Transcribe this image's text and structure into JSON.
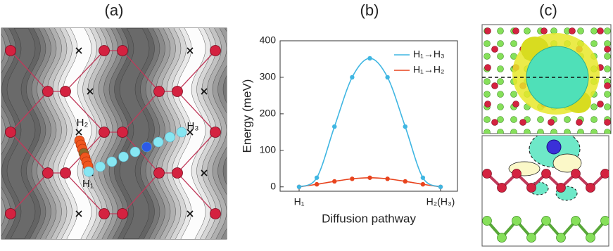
{
  "panel_labels": [
    "(a)",
    "(b)",
    "(c)"
  ],
  "panel_a": {
    "site_labels": [
      "H₂",
      "H₁",
      "H₃"
    ]
  },
  "chart_data": {
    "type": "line",
    "x_label": "Diffusion pathway",
    "y_label": "Energy (meV)",
    "categories": [
      "H₁",
      null,
      null,
      null,
      null,
      null,
      null,
      null,
      "H₂(H₃)"
    ],
    "series": [
      {
        "name": "H₁→H₃",
        "color": "#3fb6e2",
        "values": [
          0,
          25,
          165,
          300,
          352,
          300,
          165,
          25,
          0
        ]
      },
      {
        "name": "H₁→H₂",
        "color": "#e8431d",
        "values": [
          0,
          7,
          15,
          22,
          25,
          22,
          15,
          7,
          0
        ]
      }
    ],
    "ylim": [
      -12,
      400
    ],
    "yticks": [
      0,
      100,
      200,
      300,
      400
    ],
    "legend": "upper right",
    "grid": false
  }
}
